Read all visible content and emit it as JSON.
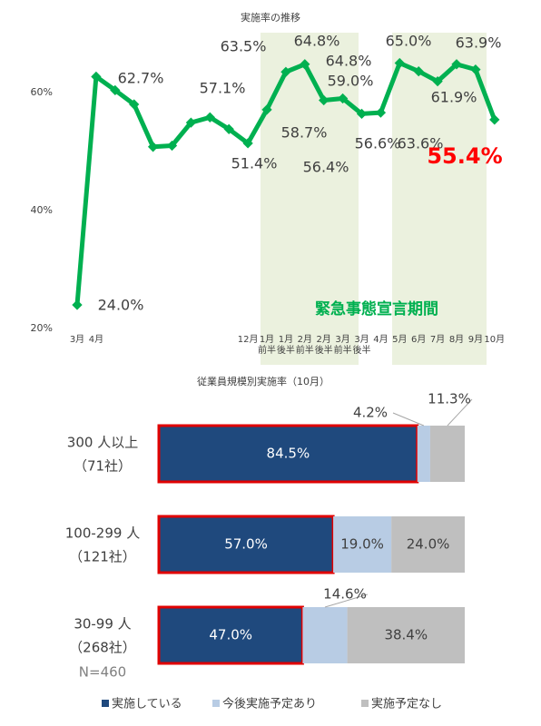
{
  "chart_data": [
    {
      "type": "line",
      "title": "実施率の推移",
      "categories": [
        "3月",
        "4月",
        null,
        null,
        null,
        null,
        null,
        null,
        null,
        "12月",
        "1月",
        "1月",
        "2月",
        "2月",
        "3月",
        "3月",
        "4月",
        "5月",
        "6月",
        "7月",
        "8月",
        "9月",
        "10月"
      ],
      "category_periods": [
        null,
        null,
        null,
        null,
        null,
        null,
        null,
        null,
        null,
        null,
        "前半",
        "後半",
        "前半",
        "後半",
        "前半",
        "後半",
        null,
        null,
        null,
        null,
        null,
        null,
        null
      ],
      "series": [
        {
          "name": "実施率",
          "color": "#00b050",
          "values": [
            24.0,
            62.7,
            60.4,
            58.0,
            50.8,
            51.0,
            54.9,
            55.8,
            53.8,
            51.4,
            57.1,
            63.5,
            64.8,
            58.7,
            59.0,
            56.4,
            56.6,
            65.0,
            63.6,
            61.9,
            64.8,
            63.9,
            55.4
          ],
          "value_labels": [
            "24.0%",
            "62.7%",
            null,
            null,
            null,
            null,
            null,
            null,
            null,
            "51.4%",
            "57.1%",
            "63.5%",
            "64.8%",
            "58.7%",
            "59.0%",
            "56.4%",
            "56.6%",
            "65.0%",
            "63.6%",
            "61.9%",
            "64.8%",
            "63.9%",
            "55.4%"
          ]
        }
      ],
      "ylim": [
        20,
        70
      ],
      "yticks": [
        {
          "value": 20,
          "label": "20%"
        },
        {
          "value": 40,
          "label": "40%"
        },
        {
          "value": 60,
          "label": "60%"
        }
      ],
      "annotation": "緊急事態宣言期間"
    },
    {
      "type": "stacked-bar-horizontal",
      "title": "従業員規模別実施率（10月）",
      "categories": [
        "300 人以上",
        "100-299 人",
        "30-99 人"
      ],
      "category_notes": [
        "（71社）",
        "（121社）",
        "（268社）"
      ],
      "series": [
        {
          "name": "実施している",
          "color": "#1f497d",
          "values": [
            84.5,
            57.0,
            47.0
          ],
          "value_labels": [
            "84.5%",
            "57.0%",
            "47.0%"
          ]
        },
        {
          "name": "今後実施予定あり",
          "color": "#b8cce4",
          "values": [
            4.2,
            19.0,
            14.6
          ],
          "value_labels": [
            "4.2%",
            "19.0%",
            "14.6%"
          ]
        },
        {
          "name": "実施予定なし",
          "color": "#bfbfbf",
          "values": [
            11.3,
            24.0,
            38.4
          ],
          "value_labels": [
            "11.3%",
            "24.0%",
            "38.4%"
          ]
        }
      ],
      "xlim": [
        0,
        100
      ],
      "annotation": "N=460"
    }
  ]
}
